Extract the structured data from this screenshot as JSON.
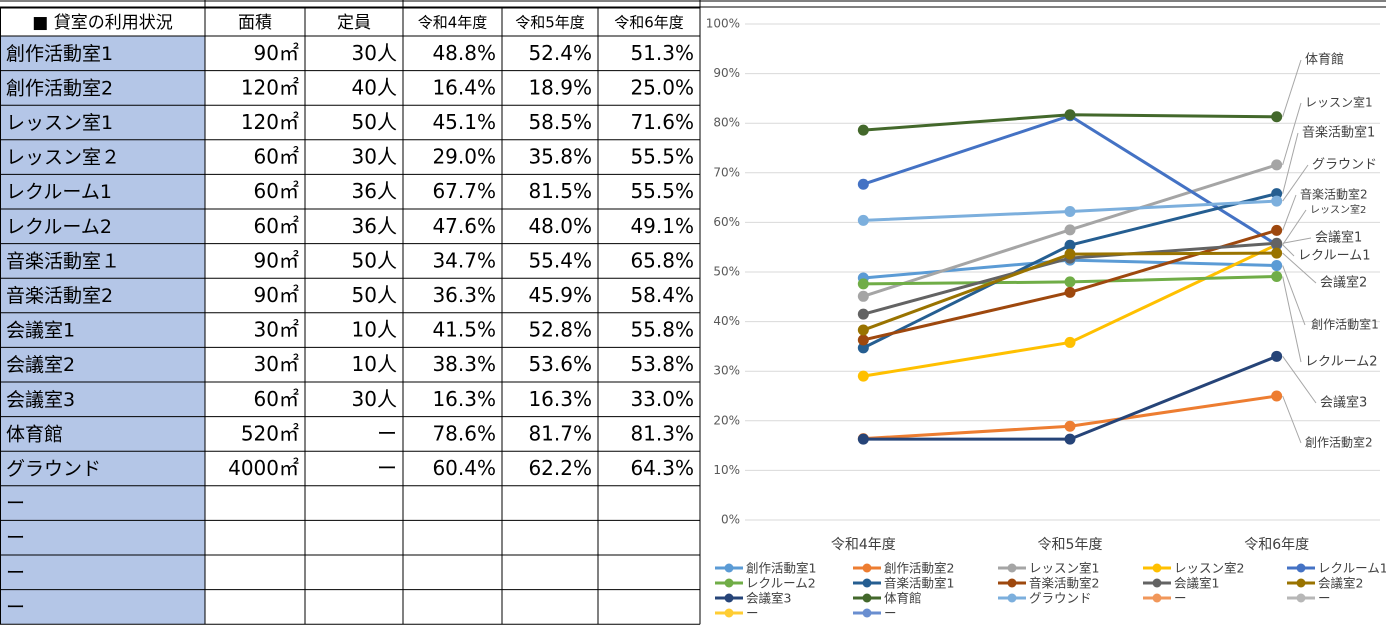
{
  "table": {
    "header": [
      "■ 貸室の利用状況",
      "面積",
      "定員",
      "令和4年度",
      "令和5年度",
      "令和6年度"
    ],
    "rows": [
      [
        "創作活動室1",
        "90㎡",
        "30人",
        "48.8%",
        "52.4%",
        "51.3%"
      ],
      [
        "創作活動室2",
        "120㎡",
        "40人",
        "16.4%",
        "18.9%",
        "25.0%"
      ],
      [
        "レッスン室1",
        "120㎡",
        "50人",
        "45.1%",
        "58.5%",
        "71.6%"
      ],
      [
        "レッスン室２",
        "60㎡",
        "30人",
        "29.0%",
        "35.8%",
        "55.5%"
      ],
      [
        "レクルーム1",
        "60㎡",
        "36人",
        "67.7%",
        "81.5%",
        "55.5%"
      ],
      [
        "レクルーム2",
        "60㎡",
        "36人",
        "47.6%",
        "48.0%",
        "49.1%"
      ],
      [
        "音楽活動室１",
        "90㎡",
        "50人",
        "34.7%",
        "55.4%",
        "65.8%"
      ],
      [
        "音楽活動室2",
        "90㎡",
        "50人",
        "36.3%",
        "45.9%",
        "58.4%"
      ],
      [
        "会議室1",
        "30㎡",
        "10人",
        "41.5%",
        "52.8%",
        "55.8%"
      ],
      [
        "会議室2",
        "30㎡",
        "10人",
        "38.3%",
        "53.6%",
        "53.8%"
      ],
      [
        "会議室3",
        "60㎡",
        "30人",
        "16.3%",
        "16.3%",
        "33.0%"
      ],
      [
        "体育館",
        "520㎡",
        "ー",
        "78.6%",
        "81.7%",
        "81.3%"
      ],
      [
        "グラウンド",
        "4000㎡",
        "ー",
        "60.4%",
        "62.2%",
        "64.3%"
      ],
      [
        "ー"
      ],
      [
        "ー"
      ],
      [
        "ー"
      ],
      [
        "ー"
      ]
    ]
  },
  "chart_data": {
    "type": "line",
    "categories": [
      "令和4年度",
      "令和5年度",
      "令和6年度"
    ],
    "ylim": [
      0,
      100
    ],
    "yticks": [
      {
        "value": 0,
        "label": "0%"
      },
      {
        "value": 10,
        "label": "10%"
      },
      {
        "value": 20,
        "label": "20%"
      },
      {
        "value": 30,
        "label": "30%"
      },
      {
        "value": 40,
        "label": "40%"
      },
      {
        "value": 50,
        "label": "50%"
      },
      {
        "value": 60,
        "label": "60%"
      },
      {
        "value": 70,
        "label": "70%"
      },
      {
        "value": 80,
        "label": "80%"
      },
      {
        "value": 90,
        "label": "90%"
      },
      {
        "value": 100,
        "label": "100%"
      }
    ],
    "grid": true,
    "legend": "bottom",
    "series": [
      {
        "name": "創作活動室1",
        "color": "#5B9BD5",
        "values": [
          48.8,
          52.4,
          51.3
        ]
      },
      {
        "name": "創作活動室2",
        "color": "#ED7D31",
        "values": [
          16.4,
          18.9,
          25.0
        ]
      },
      {
        "name": "レッスン室1",
        "color": "#A5A5A5",
        "values": [
          45.1,
          58.5,
          71.6
        ]
      },
      {
        "name": "レッスン室2",
        "color": "#FFC000",
        "values": [
          29.0,
          35.8,
          55.5
        ]
      },
      {
        "name": "レクルーム1",
        "color": "#4472C4",
        "values": [
          67.7,
          81.5,
          55.5
        ]
      },
      {
        "name": "レクルーム2",
        "color": "#70AD47",
        "values": [
          47.6,
          48.0,
          49.1
        ]
      },
      {
        "name": "音楽活動室1",
        "color": "#255E91",
        "values": [
          34.7,
          55.4,
          65.8
        ]
      },
      {
        "name": "音楽活動室2",
        "color": "#9E480E",
        "values": [
          36.3,
          45.9,
          58.4
        ]
      },
      {
        "name": "会議室1",
        "color": "#636363",
        "values": [
          41.5,
          52.8,
          55.8
        ]
      },
      {
        "name": "会議室2",
        "color": "#997300",
        "values": [
          38.3,
          53.6,
          53.8
        ]
      },
      {
        "name": "会議室3",
        "color": "#264478",
        "values": [
          16.3,
          16.3,
          33.0
        ]
      },
      {
        "name": "体育館",
        "color": "#43682B",
        "values": [
          78.6,
          81.7,
          81.3
        ]
      },
      {
        "name": "グラウンド",
        "color": "#7CAFDD",
        "values": [
          60.4,
          62.2,
          64.3
        ]
      },
      {
        "name": "ー",
        "color": "#F1975A",
        "values": [
          null,
          null,
          null
        ]
      },
      {
        "name": "ー",
        "color": "#B7B7B7",
        "values": [
          null,
          null,
          null
        ]
      },
      {
        "name": "ー",
        "color": "#FFCD33",
        "values": [
          null,
          null,
          null
        ]
      },
      {
        "name": "ー",
        "color": "#698ED0",
        "values": [
          null,
          null,
          null
        ]
      }
    ]
  }
}
